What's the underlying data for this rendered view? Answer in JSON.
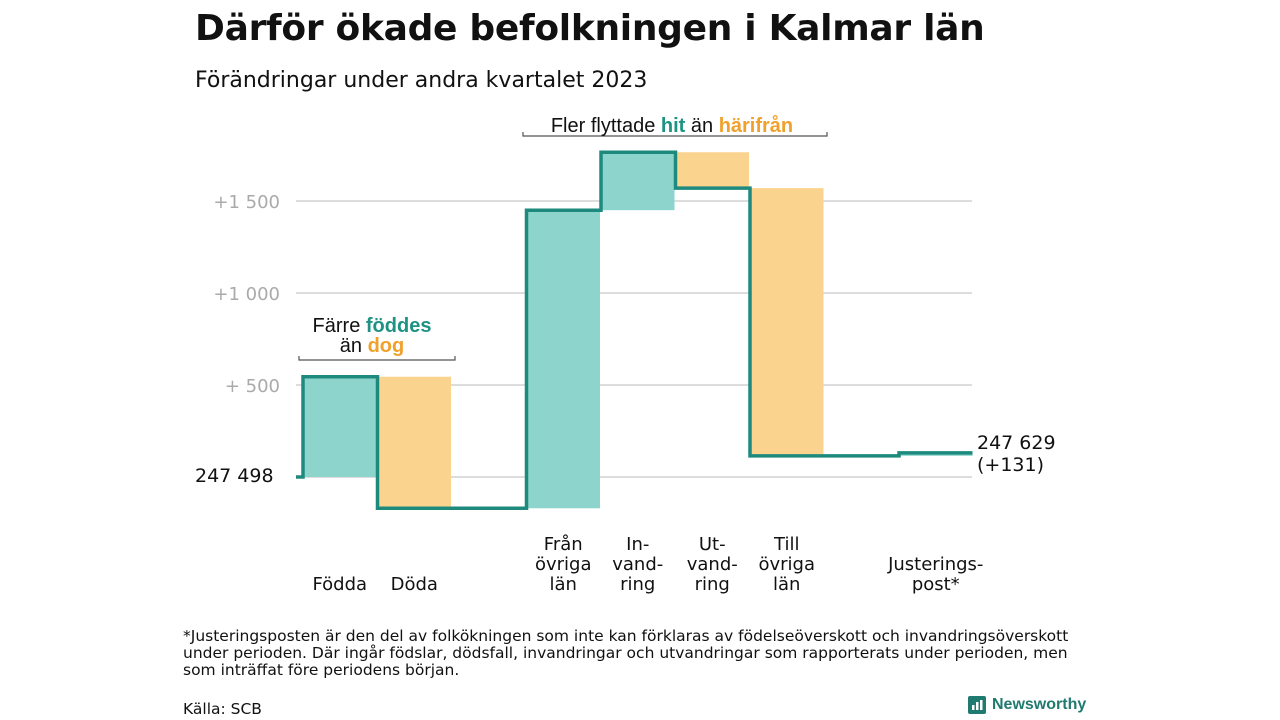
{
  "title": "Därför ökade befolkningen i Kalmar län",
  "subtitle": "Förändringar under andra kvartalet 2023",
  "annotations": {
    "births_deaths": {
      "line1": "Färre",
      "line1_hl": "föddes",
      "line2": "än",
      "line2_hl": "dog"
    },
    "migration": {
      "part1": "Fler flyttade",
      "hl1": "hit",
      "part2": "än",
      "hl2": "härifrån"
    }
  },
  "start_label": "247  498",
  "end_label_line1": "247 629",
  "end_label_line2": "(+131)",
  "footnote": "*Justeringsposten är den del av folkökningen som inte kan förklaras av födelseöverskott och invandringsöverskott under perioden. Där ingår födslar, dödsfall, invandringar och utvandringar som rapporterats under perioden, men som inträffat före periodens början.",
  "source": "Källa: SCB",
  "brand": "Newsworthy",
  "colors": {
    "teal": "#8dd5cc",
    "orange": "#fad48e",
    "line": "#1e8a7e",
    "teal_text": "#1e9384",
    "orange_text": "#f0a12b",
    "grid": "#dddddd",
    "axis_text": "#aaaaaa"
  },
  "chart_data": {
    "type": "waterfall",
    "start_value": 247498,
    "end_value": 247629,
    "y_ticks": [
      {
        "value": 500,
        "label": "+  500"
      },
      {
        "value": 1000,
        "label": "+1  000"
      },
      {
        "value": 1500,
        "label": "+1  500"
      }
    ],
    "ylim": [
      -170,
      1800
    ],
    "steps": [
      {
        "label": [
          "Födda"
        ],
        "start": 0,
        "end": 545,
        "type": "increase"
      },
      {
        "label": [
          "Döda"
        ],
        "start": 545,
        "end": -170,
        "type": "decrease"
      },
      {
        "label": [
          "Från",
          "övriga",
          "län"
        ],
        "start": -170,
        "end": 1450,
        "type": "increase"
      },
      {
        "label": [
          "In-",
          "vand-",
          "ring"
        ],
        "start": 1450,
        "end": 1765,
        "type": "increase"
      },
      {
        "label": [
          "Ut-",
          "vand-",
          "ring"
        ],
        "start": 1765,
        "end": 1570,
        "type": "decrease"
      },
      {
        "label": [
          "Till",
          "övriga",
          "län"
        ],
        "start": 1570,
        "end": 115,
        "type": "decrease"
      },
      {
        "label": [
          "Justerings-",
          "post*"
        ],
        "start": 115,
        "end": 131,
        "type": "increase"
      }
    ]
  }
}
